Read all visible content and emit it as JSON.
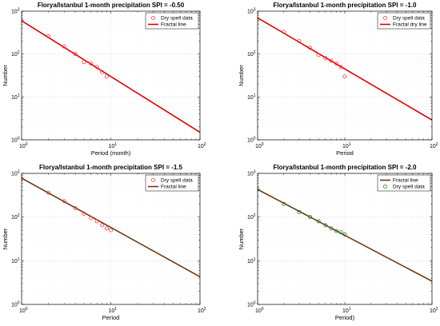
{
  "chart_data": [
    {
      "type": "scatter",
      "title": "Florya/Istanbul 1-month precipitation SPI = -0.50",
      "xlabel": "Period (month)",
      "ylabel": "Number",
      "xscale": "log",
      "yscale": "log",
      "xlim": [
        1,
        100
      ],
      "ylim": [
        1,
        1000
      ],
      "xticks": [
        {
          "base": "10",
          "exp": "0"
        },
        {
          "base": "10",
          "exp": "1"
        },
        {
          "base": "10",
          "exp": "2"
        }
      ],
      "yticks": [
        {
          "base": "10",
          "exp": "0"
        },
        {
          "base": "10",
          "exp": "1"
        },
        {
          "base": "10",
          "exp": "2"
        },
        {
          "base": "10",
          "exp": "3"
        }
      ],
      "grid": true,
      "legend_position": "top-right",
      "series": [
        {
          "name": "Dry spell data",
          "kind": "markers",
          "marker": "circle",
          "color": "#ff3b3b",
          "x": [
            1,
            2,
            3,
            4,
            5,
            6,
            7,
            8,
            9
          ],
          "y": [
            600,
            260,
            150,
            100,
            65,
            60,
            50,
            38,
            30
          ]
        },
        {
          "name": "Fractal line",
          "kind": "line",
          "color": "#e00000",
          "x": [
            1,
            100
          ],
          "y": [
            600,
            1.5
          ]
        }
      ]
    },
    {
      "type": "scatter",
      "title": "Florya/Istanbul 1-month precipitation SPI = -1.0",
      "xlabel": "Period",
      "ylabel": "Number",
      "xscale": "log",
      "yscale": "log",
      "xlim": [
        1,
        100
      ],
      "ylim": [
        1,
        1000
      ],
      "xticks": [
        {
          "base": "10",
          "exp": "0"
        },
        {
          "base": "10",
          "exp": "1"
        },
        {
          "base": "10",
          "exp": "2"
        }
      ],
      "yticks": [
        {
          "base": "10",
          "exp": "0"
        },
        {
          "base": "10",
          "exp": "1"
        },
        {
          "base": "10",
          "exp": "2"
        },
        {
          "base": "10",
          "exp": "3"
        }
      ],
      "grid": true,
      "legend_position": "top-right",
      "series": [
        {
          "name": "Dry spell data",
          "kind": "markers",
          "marker": "circle",
          "color": "#ff3b3b",
          "x": [
            1,
            2,
            3,
            4,
            5,
            6,
            7,
            8,
            9,
            10
          ],
          "y": [
            650,
            330,
            200,
            140,
            95,
            80,
            70,
            60,
            50,
            30
          ]
        },
        {
          "name": "Fractal dry line",
          "kind": "line",
          "color": "#e00000",
          "x": [
            1,
            100
          ],
          "y": [
            700,
            2.9
          ]
        }
      ]
    },
    {
      "type": "scatter",
      "title": "Florya/Istanbul 1-month precipitation SPI = -1.5",
      "xlabel": "Period",
      "ylabel": "Number",
      "xscale": "log",
      "yscale": "log",
      "xlim": [
        1,
        100
      ],
      "ylim": [
        1,
        1000
      ],
      "xticks": [
        {
          "base": "10",
          "exp": "0"
        },
        {
          "base": "10",
          "exp": "1"
        },
        {
          "base": "10",
          "exp": "2"
        }
      ],
      "yticks": [
        {
          "base": "10",
          "exp": "0"
        },
        {
          "base": "10",
          "exp": "1"
        },
        {
          "base": "10",
          "exp": "2"
        },
        {
          "base": "10",
          "exp": "3"
        }
      ],
      "grid": true,
      "legend_position": "top-right",
      "series": [
        {
          "name": "Dry spell data",
          "kind": "markers",
          "marker": "circle",
          "color": "#ff3b3b",
          "x": [
            1,
            2,
            3,
            4,
            5,
            6,
            7,
            8,
            9,
            10
          ],
          "y": [
            750,
            360,
            230,
            160,
            120,
            95,
            80,
            65,
            55,
            50
          ]
        },
        {
          "name": "Fractal line",
          "kind": "line",
          "color": "#6b3a10",
          "x": [
            1,
            100
          ],
          "y": [
            780,
            4.3
          ]
        }
      ]
    },
    {
      "type": "scatter",
      "title": "Florya/Istanbul 1-month precipitation SPI = -2.0",
      "xlabel": "Period)",
      "ylabel": "Number",
      "xscale": "log",
      "yscale": "log",
      "xlim": [
        1,
        100
      ],
      "ylim": [
        1,
        1000
      ],
      "xticks": [
        {
          "base": "10",
          "exp": "0"
        },
        {
          "base": "10",
          "exp": "1"
        },
        {
          "base": "10",
          "exp": "2"
        }
      ],
      "yticks": [
        {
          "base": "10",
          "exp": "0"
        },
        {
          "base": "10",
          "exp": "1"
        },
        {
          "base": "10",
          "exp": "2"
        },
        {
          "base": "10",
          "exp": "3"
        }
      ],
      "grid": true,
      "legend_position": "top-right",
      "series": [
        {
          "name": "Fractal  line",
          "kind": "line",
          "color": "#6b3a10",
          "x": [
            1,
            100
          ],
          "y": [
            430,
            3.4
          ]
        },
        {
          "name": "Dry spell data",
          "kind": "markers",
          "marker": "circle",
          "color": "#2e7d32",
          "x": [
            1,
            2,
            3,
            4,
            5,
            6,
            7,
            8,
            9,
            10
          ],
          "y": [
            430,
            200,
            130,
            100,
            80,
            65,
            55,
            48,
            45,
            40
          ]
        }
      ]
    }
  ]
}
